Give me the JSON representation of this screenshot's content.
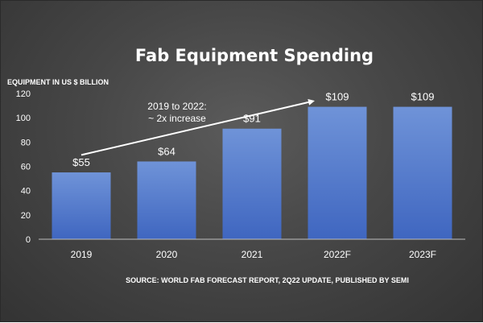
{
  "chart_data": {
    "type": "bar",
    "title": "Fab Equipment Spending",
    "ylabel": "EQUIPMENT IN US $ BILLION",
    "xlabel": "",
    "categories": [
      "2019",
      "2020",
      "2021",
      "2022F",
      "2023F"
    ],
    "values": [
      55,
      64,
      91,
      109,
      109
    ],
    "data_labels": [
      "$55",
      "$64",
      "$91",
      "$109",
      "$109"
    ],
    "ylim": [
      0,
      120
    ],
    "yticks": [
      0,
      20,
      40,
      60,
      80,
      100,
      120
    ],
    "grid": false,
    "legend": "none",
    "bar_color": "#4472c4",
    "annotation": {
      "lines": [
        "2019 to 2022:",
        "~ 2x increase"
      ],
      "arrow": {
        "from": {
          "x": "2019",
          "y": 72
        },
        "to": {
          "x": "2022F",
          "y": 115
        }
      }
    },
    "source": "SOURCE: WORLD FAB FORECAST REPORT, 2Q22 UPDATE, PUBLISHED BY SEMI"
  }
}
